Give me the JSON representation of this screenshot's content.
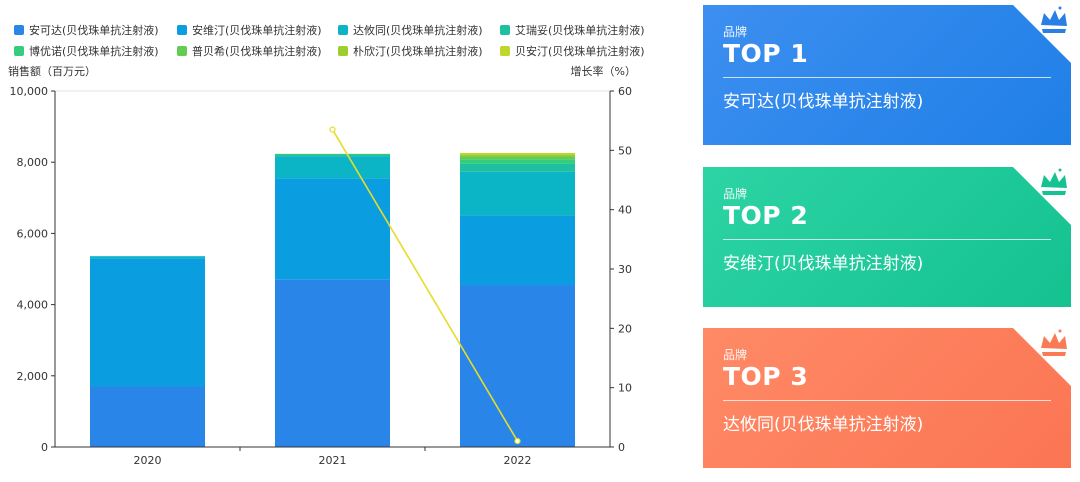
{
  "chart_data": {
    "type": "bar",
    "subtype": "stacked-bar-with-line",
    "categories": [
      "2020",
      "2021",
      "2022"
    ],
    "ylabel_left": "销售额（百万元）",
    "ylabel_right": "增长率（%）",
    "ylim_left": [
      0,
      10000
    ],
    "ylim_right": [
      0,
      60
    ],
    "yticks_left": [
      "0",
      "2,000",
      "4,000",
      "6,000",
      "8,000",
      "10,000"
    ],
    "yticks_right": [
      "0",
      "10",
      "20",
      "30",
      "40",
      "50",
      "60"
    ],
    "series": [
      {
        "name": "安可达(贝伐珠单抗注射液)",
        "color": "#2a85e8",
        "values": [
          1700,
          4700,
          4550
        ]
      },
      {
        "name": "安维汀(贝伐珠单抗注射液)",
        "color": "#0a9ee0",
        "values": [
          3600,
          2850,
          1950
        ]
      },
      {
        "name": "达攸同(贝伐珠单抗注射液)",
        "color": "#0bb5c6",
        "values": [
          60,
          620,
          1230
        ]
      },
      {
        "name": "艾瑞妥(贝伐珠单抗注射液)",
        "color": "#1ec0a0",
        "values": [
          0,
          50,
          230
        ]
      },
      {
        "name": "博优诺(贝伐珠单抗注射液)",
        "color": "#35cc7e",
        "values": [
          0,
          10,
          120
        ]
      },
      {
        "name": "普贝希(贝伐珠单抗注射液)",
        "color": "#65cc52",
        "values": [
          0,
          5,
          80
        ]
      },
      {
        "name": "朴欣汀(贝伐珠单抗注射液)",
        "color": "#9ccf2e",
        "values": [
          0,
          0,
          60
        ]
      },
      {
        "name": "贝安汀(贝伐珠单抗注射液)",
        "color": "#bfd72a",
        "values": [
          0,
          0,
          40
        ]
      }
    ],
    "line": {
      "name": "增长率",
      "color": "#e6dc2a",
      "values": [
        null,
        53.5,
        1.0
      ]
    }
  },
  "cards": [
    {
      "label": "品牌",
      "rank": "TOP 1",
      "name": "安可达(贝伐珠单抗注射液)",
      "corner_color": "#2a7fe6"
    },
    {
      "label": "品牌",
      "rank": "TOP 2",
      "name": "安维汀(贝伐珠单抗注射液)",
      "corner_color": "#16c292"
    },
    {
      "label": "品牌",
      "rank": "TOP 3",
      "name": "达攸同(贝伐珠单抗注射液)",
      "corner_color": "#fb7a56"
    }
  ]
}
